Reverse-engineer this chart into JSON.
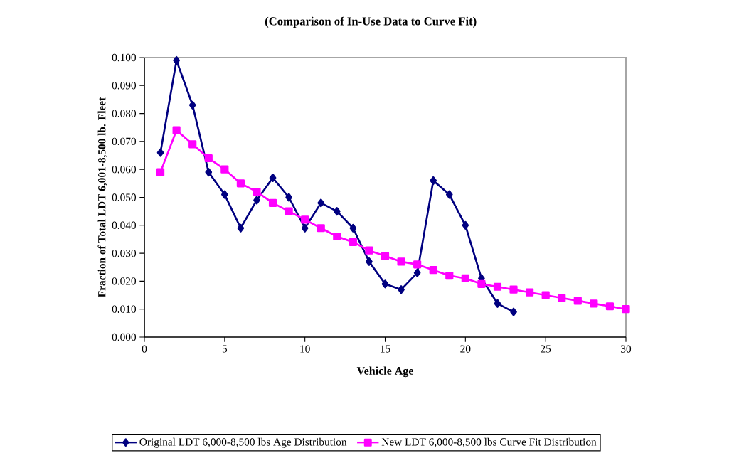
{
  "chart_data": {
    "type": "line",
    "title": "(Comparison of In-Use Data to Curve Fit)",
    "xlabel": "Vehicle Age",
    "ylabel": "Fraction of Total LDT 6,001-8,500 lb. Fleet",
    "xlim": [
      0,
      30
    ],
    "xticks": [
      0,
      5,
      10,
      15,
      20,
      25,
      30
    ],
    "ylim": [
      0,
      0.1
    ],
    "yticks": [
      {
        "value": 0,
        "label": "0.000"
      },
      {
        "value": 0.01,
        "label": "0.010"
      },
      {
        "value": 0.02,
        "label": "0.020"
      },
      {
        "value": 0.03,
        "label": "0.030"
      },
      {
        "value": 0.04,
        "label": "0.040"
      },
      {
        "value": 0.05,
        "label": "0.050"
      },
      {
        "value": 0.06,
        "label": "0.060"
      },
      {
        "value": 0.07,
        "label": "0.070"
      },
      {
        "value": 0.08,
        "label": "0.080"
      },
      {
        "value": 0.09,
        "label": "0.090"
      },
      {
        "value": 0.1,
        "label": "0.100"
      }
    ],
    "grid": false,
    "legend": "bottom",
    "line_style": "solid",
    "series": [
      {
        "name": "Original LDT 6,000-8,500 lbs Age Distribution",
        "color": "#000080",
        "marker": "diamond",
        "x": [
          1,
          2,
          3,
          4,
          5,
          6,
          7,
          8,
          9,
          10,
          11,
          12,
          13,
          14,
          15,
          16,
          17,
          18,
          19,
          20,
          21,
          22,
          23
        ],
        "values": [
          0.066,
          0.099,
          0.083,
          0.059,
          0.051,
          0.039,
          0.049,
          0.057,
          0.05,
          0.039,
          0.048,
          0.045,
          0.039,
          0.027,
          0.019,
          0.017,
          0.023,
          0.056,
          0.051,
          0.04,
          0.021,
          0.012,
          0.009
        ]
      },
      {
        "name": "New LDT 6,000-8,500 lbs Curve Fit Distribution",
        "color": "#ff00ff",
        "marker": "square",
        "x": [
          1,
          2,
          3,
          4,
          5,
          6,
          7,
          8,
          9,
          10,
          11,
          12,
          13,
          14,
          15,
          16,
          17,
          18,
          19,
          20,
          21,
          22,
          23,
          24,
          25,
          26,
          27,
          28,
          29,
          30
        ],
        "values": [
          0.059,
          0.074,
          0.069,
          0.064,
          0.06,
          0.055,
          0.052,
          0.048,
          0.045,
          0.042,
          0.039,
          0.036,
          0.034,
          0.031,
          0.029,
          0.027,
          0.026,
          0.024,
          0.022,
          0.021,
          0.019,
          0.018,
          0.017,
          0.016,
          0.015,
          0.014,
          0.013,
          0.012,
          0.011,
          0.01
        ]
      }
    ]
  }
}
